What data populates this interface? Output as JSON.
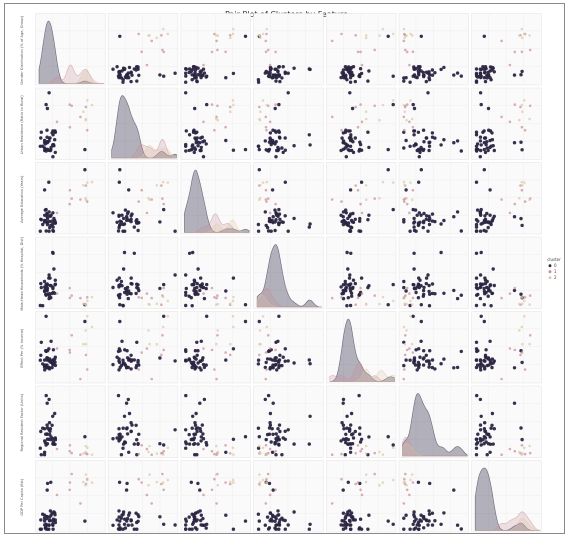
{
  "chart_data": {
    "type": "scatter",
    "subtype": "pair-plot",
    "title": "Pair Plot of Clusters by Feature",
    "variables": [
      {
        "label": "Gender Distribution (% of Age, Group)",
        "range": [
          0,
          10
        ]
      },
      {
        "label": "Urban Residence (Ratio to Rural)",
        "range": [
          0,
          10
        ]
      },
      {
        "label": "Average Education (Years)",
        "range": [
          0,
          10
        ]
      },
      {
        "label": "Male-Head Households (% Hospital, Dist)",
        "range": [
          0,
          10
        ]
      },
      {
        "label": "Effect Per (% Income)",
        "range": [
          0,
          10
        ]
      },
      {
        "label": "Regional Resident Factor (Units)",
        "range": [
          0,
          10
        ]
      },
      {
        "label": "GDP Per Capita (Est)",
        "range": [
          0,
          10
        ]
      }
    ],
    "legend": {
      "title": "cluster",
      "position": "right",
      "entries": [
        "0",
        "1",
        "2"
      ]
    },
    "series": [
      {
        "name": "0",
        "color": "#2b2542",
        "n_points": 40
      },
      {
        "name": "1",
        "color": "#c98a96",
        "n_points": 7
      },
      {
        "name": "2",
        "color": "#dcc9a6",
        "n_points": 5
      }
    ],
    "diagonal": "kde",
    "grid": true
  }
}
